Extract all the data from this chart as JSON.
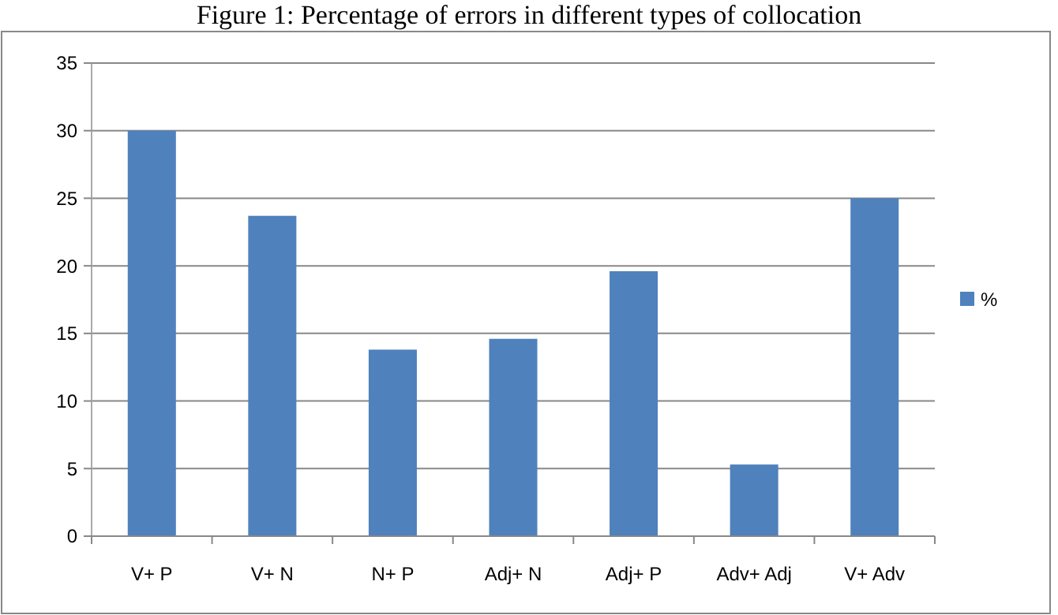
{
  "chart_data": {
    "type": "bar",
    "title": "Figure 1: Percentage of errors in different types of collocation",
    "categories": [
      "V+ P",
      "V+ N",
      "N+ P",
      "Adj+ N",
      "Adj+ P",
      "Adv+ Adj",
      "V+ Adv"
    ],
    "series": [
      {
        "name": "%",
        "color": "#4f81bd",
        "values": [
          30,
          23.7,
          13.8,
          14.6,
          19.6,
          5.3,
          25
        ]
      }
    ],
    "ylim": [
      0,
      35
    ],
    "yticks": [
      0,
      5,
      10,
      15,
      20,
      25,
      30,
      35
    ],
    "grid": "y",
    "legend": "right"
  }
}
